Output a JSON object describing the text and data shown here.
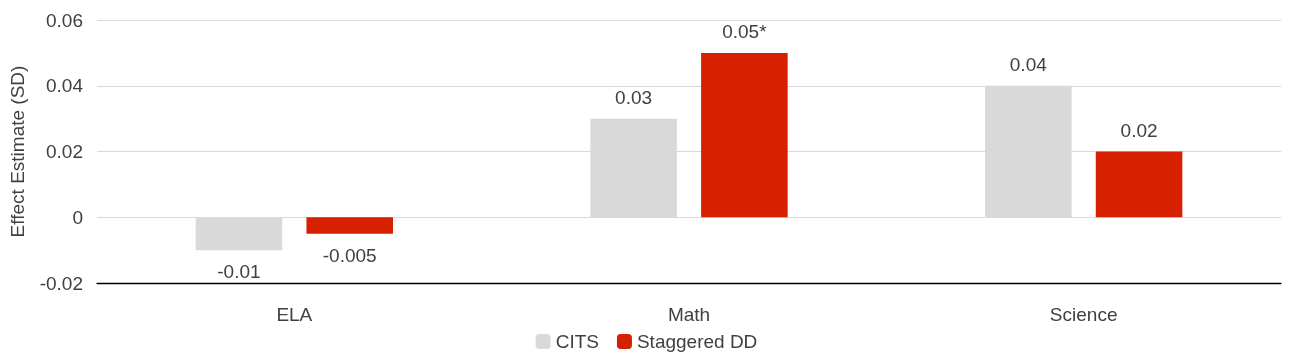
{
  "chart_data": {
    "type": "bar",
    "ylabel": "Effect Estimate (SD)",
    "categories": [
      "ELA",
      "Math",
      "Science"
    ],
    "series": [
      {
        "name": "CITS",
        "color": "#d9d9d9",
        "values": [
          -0.01,
          0.03,
          0.04
        ],
        "value_labels": [
          "-0.01",
          "0.03",
          "0.04"
        ]
      },
      {
        "name": "Staggered DD",
        "color": "#d62000",
        "values": [
          -0.005,
          0.05,
          0.02
        ],
        "value_labels": [
          "-0.005",
          "0.05*",
          "0.02"
        ]
      }
    ],
    "ylim": [
      -0.02,
      0.06
    ],
    "yticks": [
      -0.02,
      0,
      0.02,
      0.04,
      0.06
    ],
    "grid": "y",
    "legend": "bottom"
  }
}
